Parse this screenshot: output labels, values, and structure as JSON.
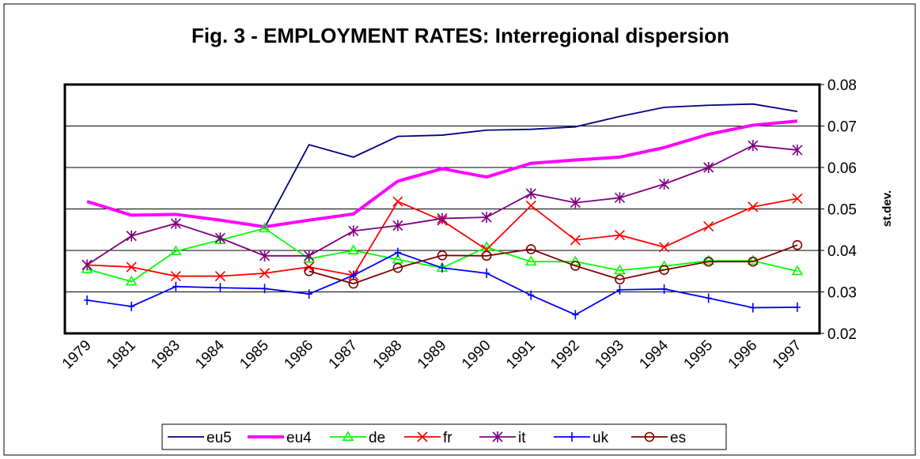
{
  "chart_data": {
    "type": "line",
    "title": "Fig. 3 - EMPLOYMENT RATES: Interregional dispersion",
    "ylabel": "st.dev.",
    "y_axis_position": "right",
    "legend": "bottom",
    "grid": true,
    "categories": [
      "1979",
      "1981",
      "1983",
      "1984",
      "1985",
      "1986",
      "1987",
      "1988",
      "1989",
      "1990",
      "1991",
      "1992",
      "1993",
      "1994",
      "1995",
      "1996",
      "1997"
    ],
    "ylim": [
      0.02,
      0.08
    ],
    "yticks": [
      0.02,
      0.03,
      0.04,
      0.05,
      0.06,
      0.07,
      0.08
    ],
    "series": [
      {
        "name": "eu5",
        "color": "#000080",
        "marker": "none",
        "values": [
          null,
          null,
          null,
          null,
          0.0455,
          0.0655,
          0.0625,
          0.0675,
          0.0678,
          0.069,
          0.0692,
          0.0698,
          0.0723,
          0.0745,
          0.075,
          0.0753,
          0.0735
        ]
      },
      {
        "name": "eu4",
        "color": "#ff00ff",
        "marker": "none",
        "values": [
          0.0518,
          0.0485,
          0.0487,
          0.0473,
          0.0457,
          0.0473,
          0.0488,
          0.0567,
          0.0597,
          0.0577,
          0.061,
          0.0618,
          0.0625,
          0.0648,
          0.068,
          0.0702,
          0.0712
        ]
      },
      {
        "name": "de",
        "color": "#00ff00",
        "marker": "triangle",
        "values": [
          0.0355,
          0.0325,
          0.0398,
          0.0425,
          0.0453,
          0.038,
          0.04,
          0.0378,
          0.0358,
          0.0408,
          0.0373,
          0.0373,
          0.0352,
          0.0362,
          0.0375,
          0.0375,
          0.035
        ]
      },
      {
        "name": "fr",
        "color": "#ff0000",
        "marker": "x",
        "values": [
          0.0365,
          0.036,
          0.0338,
          0.0338,
          0.0345,
          0.036,
          0.034,
          0.0518,
          0.0472,
          0.0402,
          0.0508,
          0.0425,
          0.0437,
          0.0408,
          0.0458,
          0.0505,
          0.0525
        ]
      },
      {
        "name": "it",
        "color": "#800080",
        "marker": "star",
        "values": [
          0.0365,
          0.0435,
          0.0465,
          0.043,
          0.0387,
          0.0387,
          0.0447,
          0.046,
          0.0477,
          0.048,
          0.0537,
          0.0515,
          0.0527,
          0.056,
          0.06,
          0.0653,
          0.0642
        ]
      },
      {
        "name": "uk",
        "color": "#0000ff",
        "marker": "plus",
        "values": [
          0.028,
          0.0265,
          0.0313,
          0.031,
          0.0308,
          0.0295,
          0.034,
          0.0395,
          0.0358,
          0.0345,
          0.0292,
          0.0245,
          0.0305,
          0.0307,
          0.0285,
          0.0262,
          0.0263
        ]
      },
      {
        "name": "es",
        "color": "#800000",
        "marker": "circle",
        "values": [
          null,
          null,
          null,
          null,
          null,
          0.035,
          0.032,
          0.0358,
          0.0388,
          0.0387,
          0.0403,
          0.0363,
          0.033,
          0.0353,
          0.0373,
          0.0373,
          0.0413
        ]
      }
    ]
  }
}
